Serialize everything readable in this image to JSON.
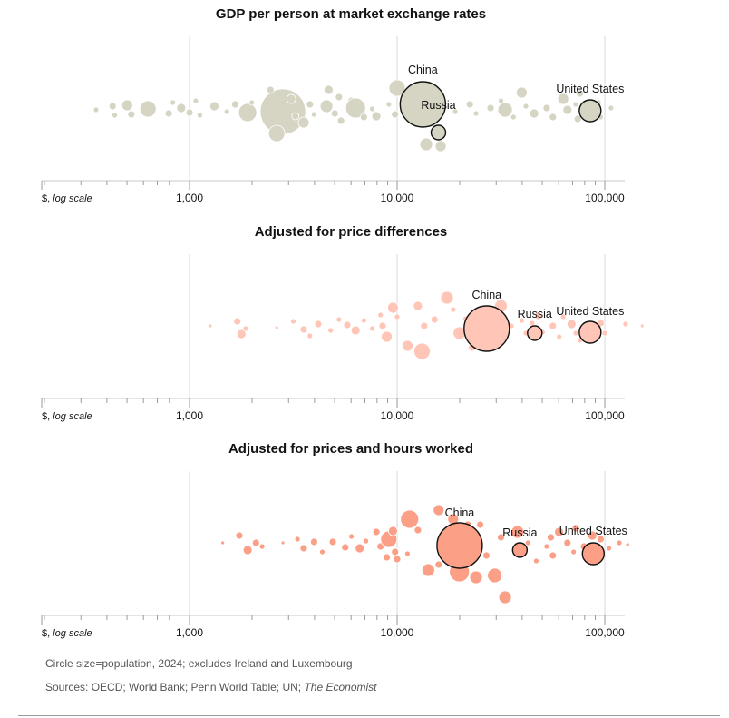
{
  "chart_data": [
    {
      "type": "scatter",
      "variant": "beeswarm-bubble",
      "title": "GDP per person at market exchange rates",
      "xscale": "log",
      "xlim": [
        240,
        130000
      ],
      "xticks": [
        1000,
        10000,
        100000
      ],
      "xtick_labels": [
        "1,000",
        "10,000",
        "100,000"
      ],
      "unit_label": "$,",
      "unit_label_italic": "log scale",
      "fill": "#d6d4c2",
      "annotated": [
        {
          "label": "China",
          "x": 13300,
          "population_m": 1410
        },
        {
          "label": "Russia",
          "x": 15800,
          "population_m": 144
        },
        {
          "label": "United States",
          "x": 85000,
          "population_m": 340
        }
      ]
    },
    {
      "type": "scatter",
      "variant": "beeswarm-bubble",
      "title": "Adjusted for price differences",
      "xscale": "log",
      "xlim": [
        240,
        130000
      ],
      "xticks": [
        1000,
        10000,
        100000
      ],
      "xtick_labels": [
        "1,000",
        "10,000",
        "100,000"
      ],
      "unit_label": "$,",
      "unit_label_italic": "log scale",
      "fill": "#ffc6b8",
      "annotated": [
        {
          "label": "China",
          "x": 27000,
          "population_m": 1410
        },
        {
          "label": "Russia",
          "x": 46000,
          "population_m": 144
        },
        {
          "label": "United States",
          "x": 85000,
          "population_m": 340
        }
      ]
    },
    {
      "type": "scatter",
      "variant": "beeswarm-bubble",
      "title": "Adjusted for prices and hours worked",
      "xscale": "log",
      "xlim": [
        240,
        130000
      ],
      "xticks": [
        1000,
        10000,
        100000
      ],
      "xtick_labels": [
        "1,000",
        "10,000",
        "100,000"
      ],
      "unit_label": "$,",
      "unit_label_italic": "log scale",
      "fill": "#fb9f86",
      "annotated": [
        {
          "label": "China",
          "x": 20000,
          "population_m": 1410
        },
        {
          "label": "Russia",
          "x": 39000,
          "population_m": 144
        },
        {
          "label": "United States",
          "x": 88000,
          "population_m": 340
        }
      ]
    }
  ],
  "footnote": "Circle size=population, 2024; excludes Ireland and Luxembourg",
  "sources_prefix": "Sources: OECD; World Bank; Penn World Table; UN; ",
  "sources_italic": "The Economist",
  "colors": {
    "axis": "#c8c8c8",
    "annotated_outline": "#121212",
    "text": "#121212",
    "footnote": "#555555"
  }
}
